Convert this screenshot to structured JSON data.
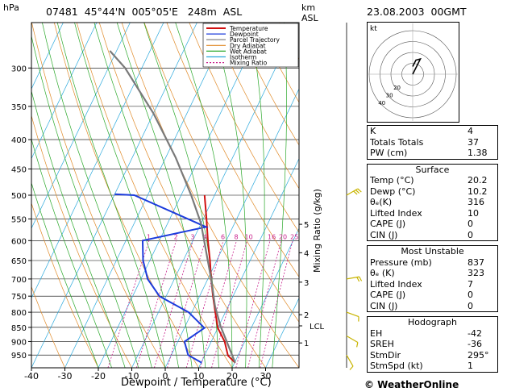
{
  "header": {
    "pressure_unit": "hPa",
    "station_info": "07481  45°44'N  005°05'E   248m  ASL",
    "height_unit_line1": "km",
    "height_unit_line2": "ASL",
    "datetime": "23.08.2003  00GMT"
  },
  "legend": [
    "Temperature",
    "Dewpoint",
    "Parcel Trajectory",
    "Dry Adiabat",
    "Wet Adiabat",
    "Isotherm",
    "Mixing Ratio"
  ],
  "legend_colors": {
    "Temperature": "#d01010",
    "Dewpoint": "#1c3cdc",
    "Parcel Trajectory": "#7a7a7a",
    "Dry Adiabat": "#e08a28",
    "Wet Adiabat": "#2aa82a",
    "Isotherm": "#2aa8dc",
    "Mixing Ratio": "#c8208c"
  },
  "chart_data": {
    "type": "line",
    "title": "",
    "xlabel": "Dewpoint / Temperature (°C)",
    "ylabel": "hPa",
    "y2label": "Mixing Ratio (g/kg)",
    "xlim": [
      -40,
      40
    ],
    "ylim": [
      1000,
      250
    ],
    "y_scale": "log",
    "x_ticks": [
      -40,
      -30,
      -20,
      -10,
      0,
      10,
      20,
      30
    ],
    "y_ticks": [
      300,
      350,
      400,
      450,
      500,
      550,
      600,
      650,
      700,
      750,
      800,
      850,
      900,
      950
    ],
    "height_ticks": [
      {
        "label": "1",
        "p": 905
      },
      {
        "label": "2",
        "p": 808
      },
      {
        "label": "3",
        "p": 709
      },
      {
        "label": "4",
        "p": 630
      },
      {
        "label": "5",
        "p": 562
      }
    ],
    "lcl": {
      "label": "LCL",
      "p": 845
    },
    "mixing_ratio_labels": [
      "1",
      "2",
      "3",
      "4",
      "6",
      "8",
      "10",
      "16",
      "20",
      "25"
    ],
    "mixing_ratio_values": [
      1,
      2,
      3,
      4,
      6,
      8,
      10,
      16,
      20,
      25
    ],
    "series": [
      {
        "name": "Temperature",
        "color": "#d01010",
        "points": [
          [
            20.2,
            980
          ],
          [
            17,
            952
          ],
          [
            14,
            900
          ],
          [
            10,
            852
          ],
          [
            7,
            800
          ],
          [
            4,
            750
          ],
          [
            1,
            700
          ],
          [
            -2,
            650
          ],
          [
            -5.5,
            600
          ],
          [
            -9,
            550
          ],
          [
            -13,
            500
          ]
        ]
      },
      {
        "name": "Dewpoint",
        "color": "#1c3cdc",
        "points": [
          [
            10.2,
            980
          ],
          [
            5,
            950
          ],
          [
            2,
            900
          ],
          [
            6,
            852
          ],
          [
            -1,
            800
          ],
          [
            -12,
            750
          ],
          [
            -18,
            700
          ],
          [
            -22,
            650
          ],
          [
            -25,
            600
          ],
          [
            -8,
            568
          ],
          [
            -34,
            500
          ],
          [
            -40,
            498
          ]
        ]
      },
      {
        "name": "Parcel Trajectory",
        "color": "#7a7a7a",
        "points": [
          [
            20.2,
            980
          ],
          [
            10.5,
            845
          ],
          [
            6,
            780
          ],
          [
            1,
            700
          ],
          [
            -5,
            620
          ],
          [
            -10,
            560
          ],
          [
            -17,
            500
          ],
          [
            -27,
            430
          ],
          [
            -40,
            360
          ],
          [
            -55,
            300
          ],
          [
            -62,
            280
          ]
        ]
      }
    ]
  },
  "hodograph": {
    "label": "kt",
    "ring_labels": [
      "20",
      "30",
      "40"
    ],
    "ring_speeds": [
      10,
      20,
      30,
      40
    ],
    "trace": [
      [
        0,
        0
      ],
      [
        2,
        4
      ],
      [
        5,
        10
      ],
      [
        7,
        14
      ],
      [
        3,
        13
      ],
      [
        0,
        7
      ]
    ]
  },
  "wind_barbs": [
    {
      "p": 500,
      "dir": 240,
      "speed": 25
    },
    {
      "p": 700,
      "dir": 260,
      "speed": 20
    },
    {
      "p": 800,
      "dir": 290,
      "speed": 10
    },
    {
      "p": 880,
      "dir": 300,
      "speed": 10
    },
    {
      "p": 950,
      "dir": 330,
      "speed": 5
    }
  ],
  "indices": [
    {
      "label": "K",
      "value": "4"
    },
    {
      "label": "Totals Totals",
      "value": "37"
    },
    {
      "label": "PW (cm)",
      "value": "1.38"
    }
  ],
  "surface": {
    "title": "Surface",
    "rows": [
      {
        "label": "Temp (°C)",
        "value": "20.2"
      },
      {
        "label": "Dewp (°C)",
        "value": "10.2"
      },
      {
        "label": "θₑ(K)",
        "value": "316"
      },
      {
        "label": "Lifted Index",
        "value": "10"
      },
      {
        "label": "CAPE (J)",
        "value": "0"
      },
      {
        "label": "CIN (J)",
        "value": "0"
      }
    ]
  },
  "most_unstable": {
    "title": "Most Unstable",
    "rows": [
      {
        "label": "Pressure (mb)",
        "value": "837"
      },
      {
        "label": "θₑ (K)",
        "value": "323"
      },
      {
        "label": "Lifted Index",
        "value": "7"
      },
      {
        "label": "CAPE (J)",
        "value": "0"
      },
      {
        "label": "CIN (J)",
        "value": "0"
      }
    ]
  },
  "hodograph_stats": {
    "title": "Hodograph",
    "rows": [
      {
        "label": "EH",
        "value": "-42"
      },
      {
        "label": "SREH",
        "value": "-36"
      },
      {
        "label": "StmDir",
        "value": "295°"
      },
      {
        "label": "StmSpd (kt)",
        "value": "1"
      }
    ]
  },
  "credit": "© WeatherOnline"
}
